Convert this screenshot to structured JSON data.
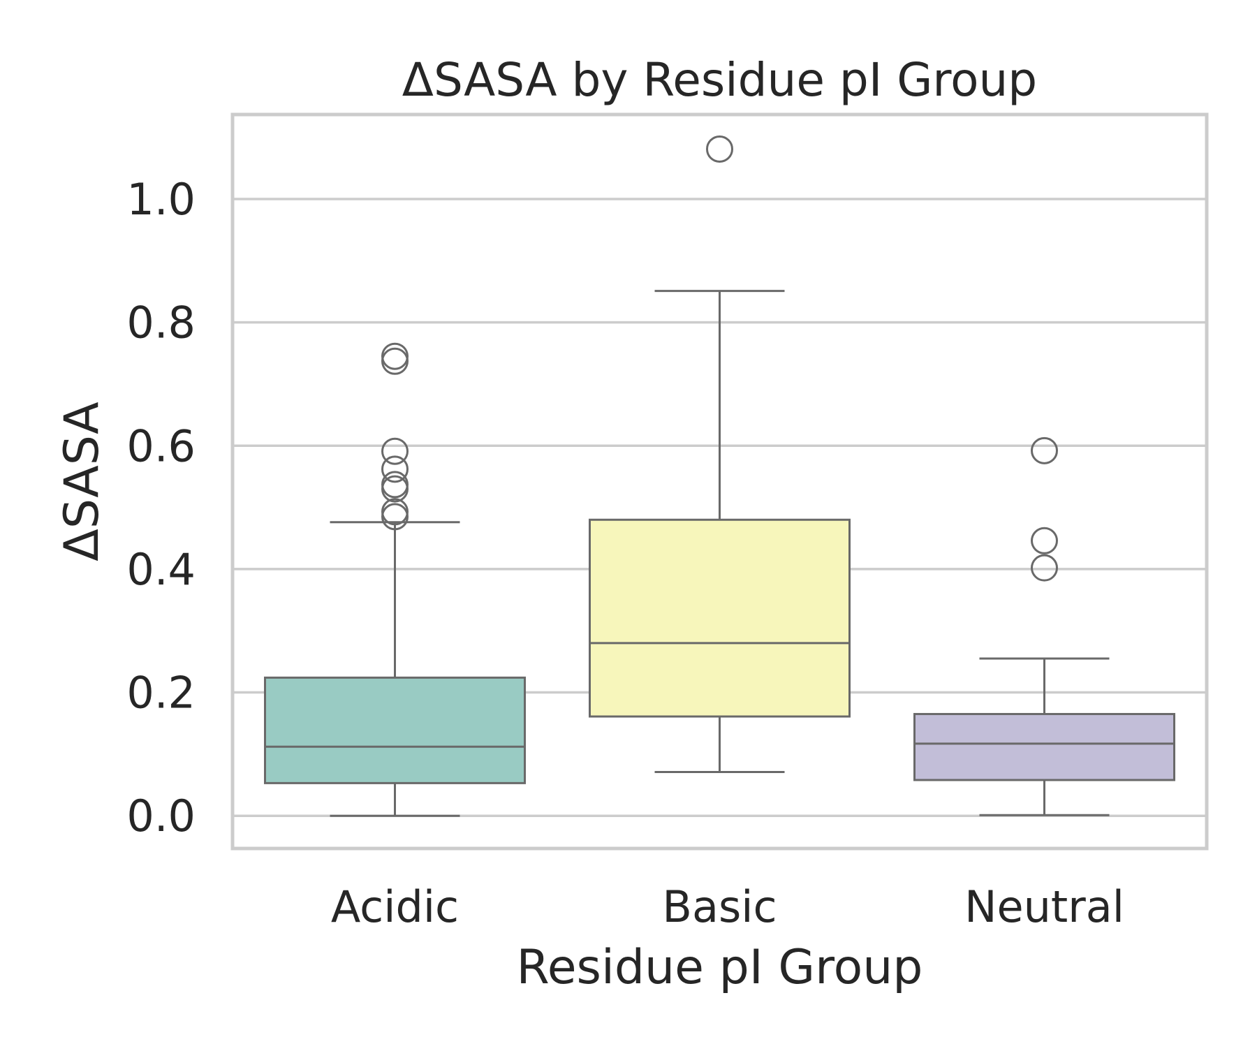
{
  "chart_data": {
    "type": "box",
    "title": "ΔSASA by Residue pI Group",
    "xlabel": "Residue pI Group",
    "ylabel": "ΔSASA",
    "ylim": [
      -0.053,
      1.137
    ],
    "yticks": [
      "0.0",
      "0.2",
      "0.4",
      "0.6",
      "0.8",
      "1.0"
    ],
    "grid": "horizontal",
    "categories": [
      "Acidic",
      "Basic",
      "Neutral"
    ],
    "colors": {
      "Acidic": "#99cbc3",
      "Basic": "#f7f6bb",
      "Neutral": "#c2bed8",
      "line": "#696969",
      "grid": "#cccccc",
      "frame": "#cccccc"
    },
    "boxes": [
      {
        "category": "Acidic",
        "whisker_low": 0.0,
        "q1": 0.053,
        "median": 0.112,
        "q3": 0.224,
        "whisker_high": 0.476,
        "outliers": [
          0.745,
          0.737,
          0.591,
          0.562,
          0.537,
          0.53,
          0.493,
          0.485
        ]
      },
      {
        "category": "Basic",
        "whisker_low": 0.071,
        "q1": 0.161,
        "median": 0.28,
        "q3": 0.48,
        "whisker_high": 0.851,
        "outliers": [
          1.081
        ]
      },
      {
        "category": "Neutral",
        "whisker_low": 0.001,
        "q1": 0.058,
        "median": 0.117,
        "q3": 0.165,
        "whisker_high": 0.255,
        "outliers": [
          0.592,
          0.446,
          0.402
        ]
      }
    ]
  }
}
